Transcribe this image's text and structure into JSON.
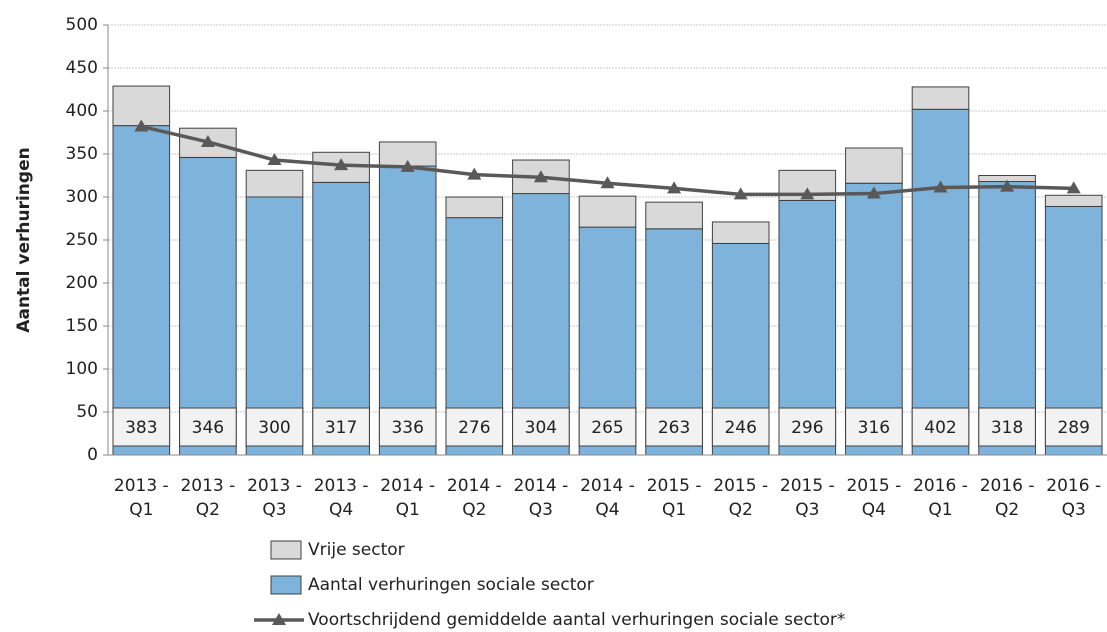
{
  "chart_data": {
    "type": "bar",
    "stacked": true,
    "y_label": "Aantal verhuringen",
    "categories": [
      "2013 - Q1",
      "2013 - Q2",
      "2013 - Q3",
      "2013 - Q4",
      "2014 - Q1",
      "2014 - Q2",
      "2014 - Q3",
      "2014 - Q4",
      "2015 - Q1",
      "2015 - Q2",
      "2015 - Q3",
      "2015 - Q4",
      "2016 - Q1",
      "2016 - Q2",
      "2016 - Q3"
    ],
    "series": [
      {
        "name": "Aantal verhuringen sociale sector",
        "type": "bar",
        "color": "#7eb3dc",
        "values": [
          383,
          346,
          300,
          317,
          336,
          276,
          304,
          265,
          263,
          246,
          296,
          316,
          402,
          318,
          289
        ]
      },
      {
        "name": "Vrije sector",
        "type": "bar",
        "color": "#d9d9d9",
        "values": [
          46,
          34,
          31,
          35,
          28,
          24,
          39,
          36,
          31,
          25,
          35,
          41,
          26,
          7,
          13
        ]
      },
      {
        "name": "Voortschrijdend gemiddelde aantal verhuringen sociale sector*",
        "type": "line",
        "color": "#595959",
        "values": [
          382,
          364,
          343,
          337,
          335,
          326,
          323,
          316,
          310,
          303,
          303,
          304,
          311,
          312,
          310
        ]
      }
    ],
    "ylim": [
      0,
      500
    ],
    "yticks": [
      0,
      50,
      100,
      150,
      200,
      250,
      300,
      350,
      400,
      450,
      500
    ],
    "grid": true,
    "legend": "bottom"
  }
}
